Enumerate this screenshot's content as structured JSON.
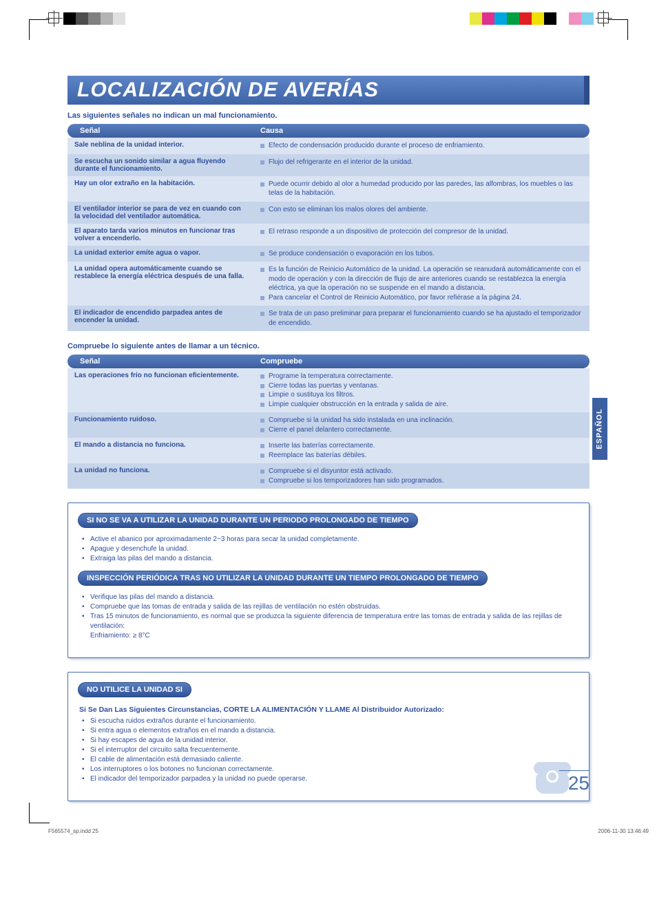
{
  "regmarks": {
    "left_swatches": [
      "#000000",
      "#4d4d4d",
      "#808080",
      "#b3b3b3",
      "#e0e0e0",
      "#ffffff",
      "#ffffff",
      "#ffffff",
      "#ffffff",
      "#ffffff"
    ],
    "right_swatches": [
      "#e8e840",
      "#e03090",
      "#00a6e0",
      "#00a040",
      "#e02020",
      "#f0e000",
      "#000000",
      "#ffffff",
      "#f090c0",
      "#80d0f0"
    ]
  },
  "title": "LOCALIZACIÓN DE AVERÍAS",
  "intro1": "Las siguientes señales no indican un mal funcionamiento.",
  "table1": {
    "h1": "Señal",
    "h2": "Causa",
    "rows": [
      {
        "s": "Sale neblina de la unidad interior.",
        "c": [
          "Efecto de condensación producido durante el proceso de enfriamiento."
        ]
      },
      {
        "s": "Se escucha un sonido similar a agua fluyendo durante el funcionamiento.",
        "c": [
          "Flujo del refrigerante en el interior de la unidad."
        ]
      },
      {
        "s": "Hay un olor extraño en la habitación.",
        "c": [
          "Puede ocurrir debido al olor a humedad producido por las paredes, las alfombras, los muebles o las telas de la habitación."
        ]
      },
      {
        "s": "El ventilador interior se para de vez en cuando con la velocidad del ventilador automática.",
        "c": [
          "Con esto se eliminan los malos olores del ambiente."
        ]
      },
      {
        "s": "El aparato tarda varios minutos en funcionar tras volver a encenderlo.",
        "c": [
          "El retraso responde a un dispositivo de protección del compresor de la unidad."
        ]
      },
      {
        "s": "La unidad exterior emite agua o vapor.",
        "c": [
          "Se produce condensación o evaporación en los tubos."
        ]
      },
      {
        "s": "La unidad opera automáticamente cuando se restablece la energía eléctrica después de una falla.",
        "c": [
          "Es la función de Reinicio Automático de la unidad. La operación se reanudará automáticamente con el modo de operación y con la dirección de flujo de aire anteriores cuando se restablezca la energía eléctrica, ya que la operación no se suspende en el mando a distancia.",
          "Para cancelar el Control de Reinicio Automático, por favor refiérase a la página 24."
        ]
      },
      {
        "s": "El indicador de encendido parpadea antes de encender la unidad.",
        "c": [
          "Se trata de un paso preliminar para preparar el funcionamiento cuando se ha ajustado el temporizador de encendido."
        ]
      }
    ]
  },
  "intro2": "Compruebe lo siguiente antes de llamar a un técnico.",
  "table2": {
    "h1": "Señal",
    "h2": "Compruebe",
    "rows": [
      {
        "s": "Las operaciones frío no funcionan eficientemente.",
        "c": [
          "Programe la temperatura correctamente.",
          "Cierre todas las puertas y ventanas.",
          "Limpie o sustituya los filtros.",
          "Limpie cualquier obstrucción en la entrada y salida de aire."
        ]
      },
      {
        "s": "Funcionamiento ruidoso.",
        "c": [
          "Compruebe si la unidad ha sido instalada en una inclinación.",
          "Cierre el panel delantero correctamente."
        ]
      },
      {
        "s": "El mando a distancia no funciona.",
        "c": [
          "Inserte las baterías correctamente.",
          "Reemplace las baterías débiles."
        ]
      },
      {
        "s": "La unidad no funciona.",
        "c": [
          "Compruebe si el disyuntor está activado.",
          "Compruebe si los temporizadores han sido programados."
        ]
      }
    ]
  },
  "box1": {
    "pill1": "SI NO SE VA A UTILIZAR LA UNIDAD DURANTE UN PERIODO PROLONGADO DE TIEMPO",
    "l1": [
      "Active el abanico por aproximadamente 2~3 horas para secar la unidad completamente.",
      "Apague y desenchufe la unidad.",
      "Extraiga las pilas del mando a distancia."
    ],
    "pill2": "INSPECCIÓN PERIÓDICA TRAS NO UTILIZAR LA UNIDAD DURANTE UN TIEMPO PROLONGADO DE TIEMPO",
    "l2": [
      "Verifique las pilas del mando a distancia.",
      "Compruebe que las tomas de entrada y salida de las rejillas de ventilación no estén obstruidas.",
      "Tras 15 minutos de funcionamiento, es normal que se produzca la siguiente diferencia de temperatura entre las tomas de entrada y salida de las rejillas de ventilación:\nEnfriamiento: ≥ 8°C"
    ]
  },
  "box2": {
    "pill": "NO UTILICE LA UNIDAD SI",
    "sub": "Si Se Dan Las Siguientes Circunstancias, CORTE LA ALIMENTACIÓN Y LLAME Al Distribuidor Autorizado:",
    "l": [
      "Si escucha ruidos extraños durante el funcionamiento.",
      "Si entra agua o elementos extraños en el mando a distancia.",
      "Si hay escapes de agua de la unidad interior.",
      "Si el interruptor del circuito salta frecuentemente.",
      "El cable de alimentación está demasiado caliente.",
      "Los interruptores o los botones no funcionan correctamente.",
      "El indicador del temporizador parpadea y la unidad no puede operarse."
    ]
  },
  "side_tab": "ESPAÑOL",
  "page_number": "25",
  "footer": {
    "file": "F565574_sp.indd   25",
    "date": "2006-11-30   13:46:49"
  }
}
